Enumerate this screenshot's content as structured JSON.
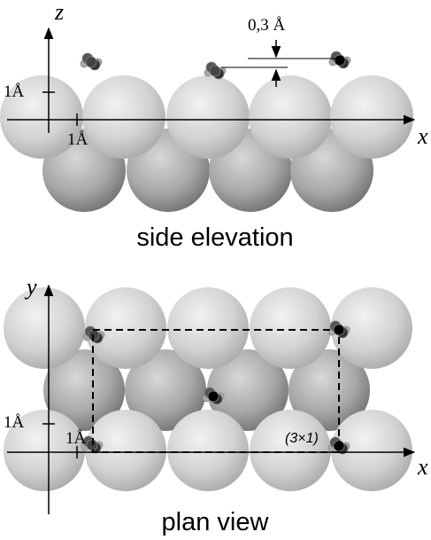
{
  "side_elevation": {
    "axis_z": "z",
    "axis_x": "x",
    "scale_z": "1Å",
    "scale_x": "1Å",
    "height_label": "0,3 Å",
    "caption": "side elevation"
  },
  "plan_view": {
    "axis_y": "y",
    "axis_x": "x",
    "scale_y": "1Å",
    "scale_x": "1Å",
    "cell_label": "(3×1)",
    "caption": "plan view"
  }
}
